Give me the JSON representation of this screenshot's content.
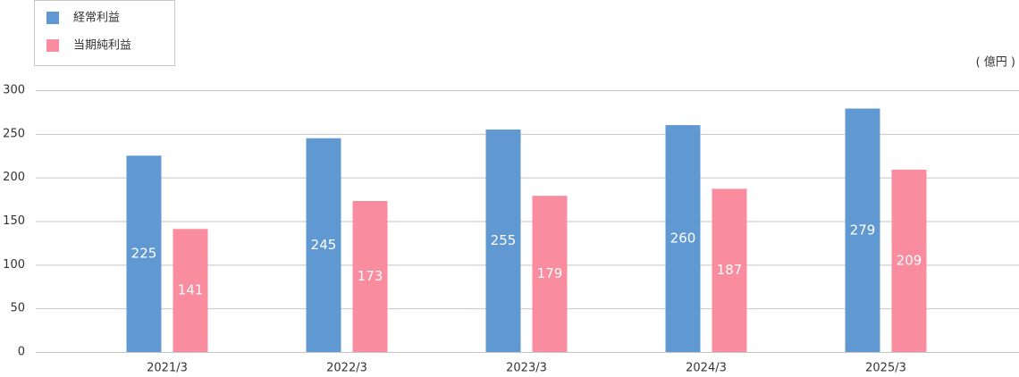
{
  "chart_data": {
    "type": "bar",
    "unit_label": "( 億円 )",
    "categories": [
      "2021/3",
      "2022/3",
      "2023/3",
      "2024/3",
      "2025/3"
    ],
    "series": [
      {
        "name": "経常利益",
        "color": "#6098d2",
        "values": [
          225,
          245,
          255,
          260,
          279
        ]
      },
      {
        "name": "当期純利益",
        "color": "#f98c9e",
        "values": [
          141,
          173,
          179,
          187,
          209
        ]
      }
    ],
    "ylim": [
      0,
      300
    ],
    "yticks": [
      0,
      50,
      100,
      150,
      200,
      250,
      300
    ],
    "grid": true,
    "legend": "top-left"
  }
}
